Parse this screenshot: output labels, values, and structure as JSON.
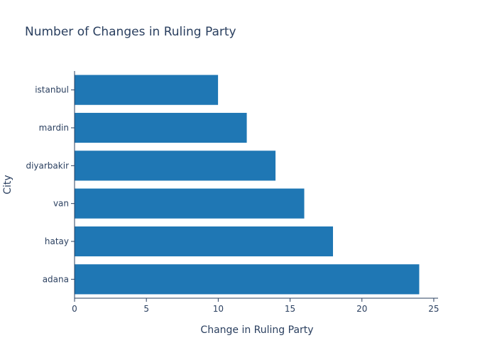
{
  "chart_data": {
    "type": "bar",
    "orientation": "horizontal",
    "title": "Number of Changes in Ruling Party",
    "xlabel": "Change in Ruling Party",
    "ylabel": "City",
    "categories": [
      "istanbul",
      "mardin",
      "diyarbakir",
      "van",
      "hatay",
      "adana"
    ],
    "values": [
      10,
      12,
      14,
      16,
      18,
      24
    ],
    "xlim": [
      0,
      25.3
    ],
    "xticks": [
      0,
      5,
      10,
      15,
      20,
      25
    ],
    "xtick_labels": [
      "0",
      "5",
      "10",
      "15",
      "20",
      "25"
    ],
    "grid": false,
    "bar_color": "#1f77b4"
  }
}
